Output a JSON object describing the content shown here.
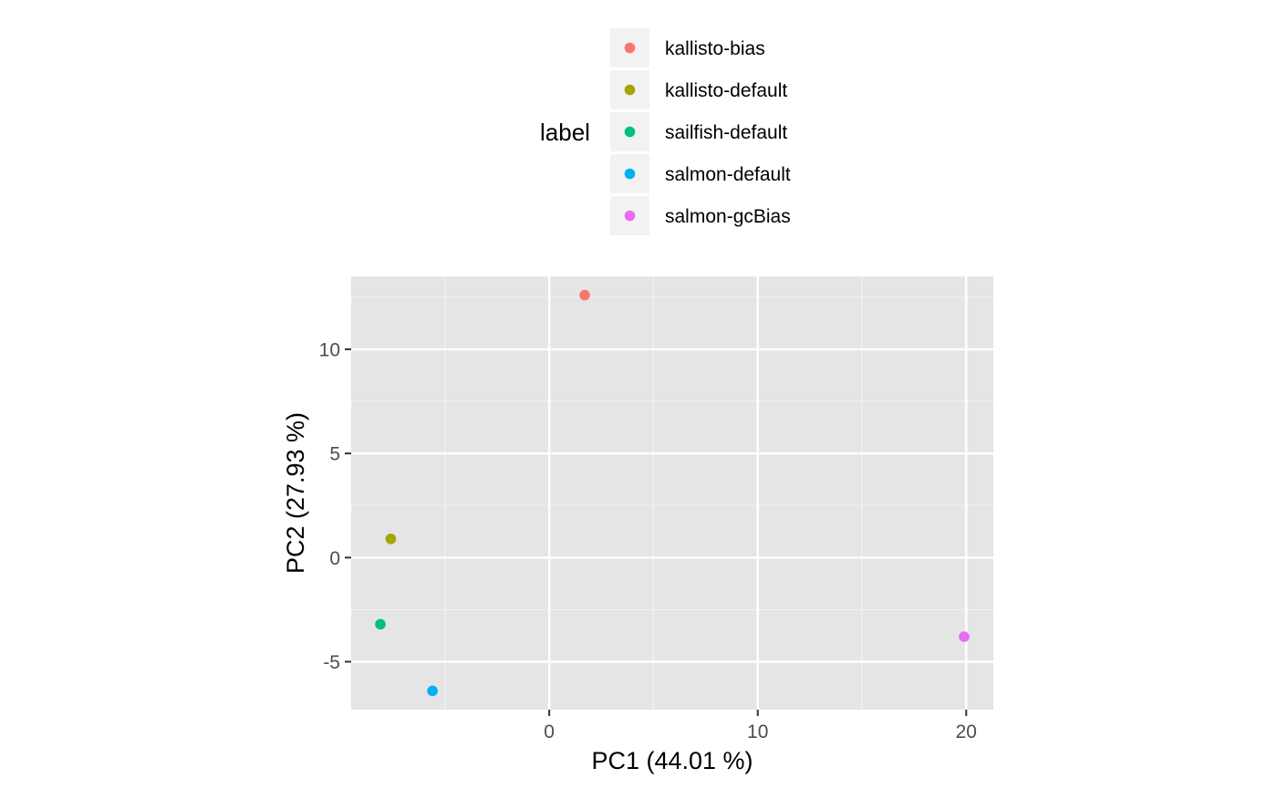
{
  "chart_data": {
    "type": "scatter",
    "title": "",
    "xlabel": "PC1 (44.01 %)",
    "ylabel": "PC2 (27.93 %)",
    "xlim": [
      -9.5,
      21.3
    ],
    "ylim": [
      -7.3,
      13.5
    ],
    "xticks": [
      0,
      10,
      20
    ],
    "xtick_labels": [
      "0",
      "10",
      "20"
    ],
    "yticks": [
      -5,
      0,
      5,
      10
    ],
    "ytick_labels": [
      "-5",
      "0",
      "5",
      "10"
    ],
    "grid": true,
    "legend": {
      "title": "label",
      "position": "top"
    },
    "series": [
      {
        "name": "kallisto-bias",
        "color": "#F8766D",
        "x": [
          1.7
        ],
        "y": [
          12.6
        ]
      },
      {
        "name": "kallisto-default",
        "color": "#A3A500",
        "x": [
          -7.6
        ],
        "y": [
          0.9
        ]
      },
      {
        "name": "sailfish-default",
        "color": "#00BF7D",
        "x": [
          -8.1
        ],
        "y": [
          -3.2
        ]
      },
      {
        "name": "salmon-default",
        "color": "#00B0F6",
        "x": [
          -5.6
        ],
        "y": [
          -6.4
        ]
      },
      {
        "name": "salmon-gcBias",
        "color": "#E76BF3",
        "x": [
          19.9
        ],
        "y": [
          -3.8
        ]
      }
    ]
  }
}
